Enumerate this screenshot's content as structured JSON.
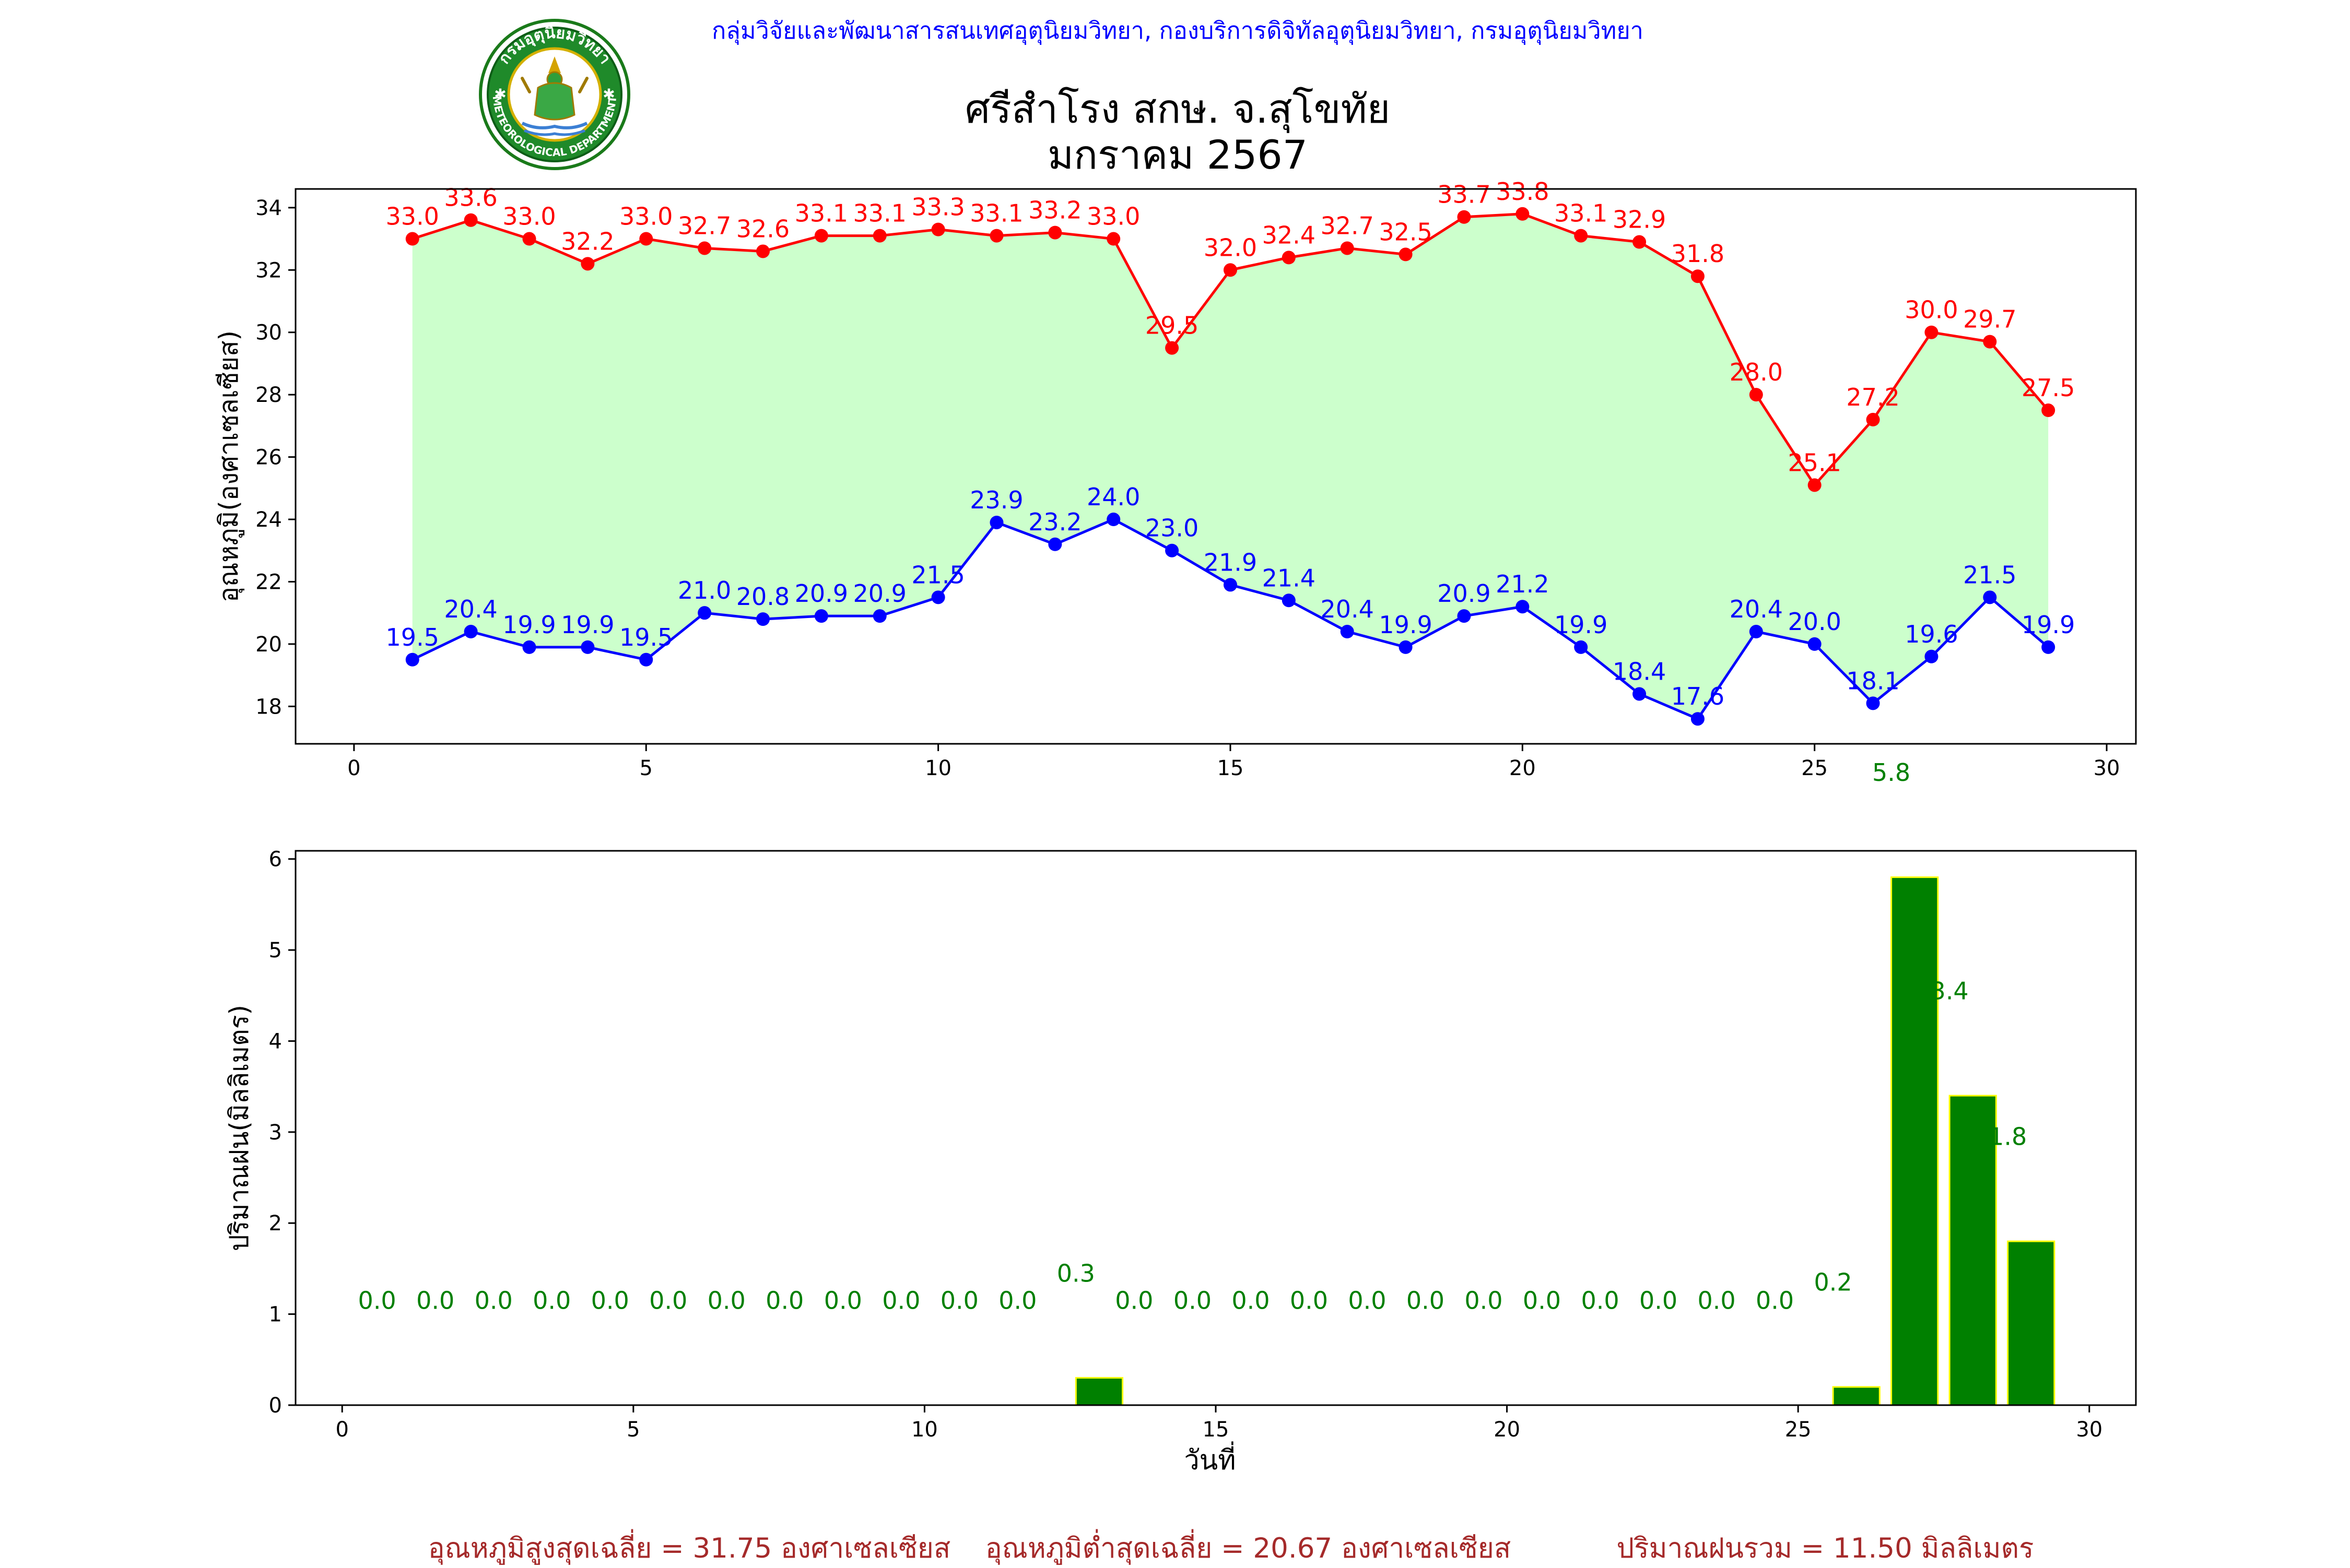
{
  "header": {
    "department_line": "กลุ่มวิจัยและพัฒนาสารสนเทศอุตุนิยมวิทยา, กองบริการดิจิทัลอุตุนิยมวิทยา, กรมอุตุนิยมวิทยา",
    "station": "ศรีสำโรง สกษ. จ.สุโขทัย",
    "month": "มกราคม 2567",
    "logo_text_top": "กรมอุตุนิยมวิทยา",
    "logo_text_bottom": "METEOROLOGICAL DEPARTMENT"
  },
  "colors": {
    "max_line": "#ff0000",
    "min_line": "#0000ff",
    "band_fill": "#ccffcc",
    "rain_bar": "#008000",
    "rain_edge": "#ffff00",
    "rain_label": "#008000",
    "summary_text": "#a52a2a",
    "header_text": "#0000ff"
  },
  "chart_data": [
    {
      "type": "line",
      "ylabel": "อุณหภูมิ(องศาเซลเซียส)",
      "xlim": [
        -1,
        30.5
      ],
      "ylim": [
        16.8,
        34.6
      ],
      "xticks": [
        0,
        5,
        10,
        15,
        20,
        25,
        30
      ],
      "yticks": [
        18,
        20,
        22,
        24,
        26,
        28,
        30,
        32,
        34
      ],
      "x": [
        1,
        2,
        3,
        4,
        5,
        6,
        7,
        8,
        9,
        10,
        11,
        12,
        13,
        14,
        15,
        16,
        17,
        18,
        19,
        20,
        21,
        22,
        23,
        24,
        25,
        26,
        27,
        28,
        29
      ],
      "series": [
        {
          "key": "max",
          "values": [
            33.0,
            33.6,
            33.0,
            32.2,
            33.0,
            32.7,
            32.6,
            33.1,
            33.1,
            33.3,
            33.1,
            33.2,
            33.0,
            29.5,
            32.0,
            32.4,
            32.7,
            32.5,
            33.7,
            33.8,
            33.1,
            32.9,
            31.8,
            28.0,
            25.1,
            27.2,
            30.0,
            29.7,
            27.5
          ]
        },
        {
          "key": "min",
          "values": [
            19.5,
            20.4,
            19.9,
            19.9,
            19.5,
            21.0,
            20.8,
            20.9,
            20.9,
            21.5,
            23.9,
            23.2,
            24.0,
            23.0,
            21.9,
            21.4,
            20.4,
            19.9,
            20.9,
            21.2,
            19.9,
            18.4,
            17.6,
            20.4,
            20.0,
            18.1,
            19.6,
            21.5,
            19.9
          ]
        }
      ]
    },
    {
      "type": "bar",
      "ylabel": "ปริมาณฝน(มิลลิเมตร)",
      "xlabel": "วันที่",
      "xlim": [
        -0.8,
        30.8
      ],
      "ylim": [
        0,
        6.09
      ],
      "xticks": [
        0,
        5,
        10,
        15,
        20,
        25,
        30
      ],
      "yticks": [
        0,
        1,
        2,
        3,
        4,
        5,
        6
      ],
      "x": [
        1,
        2,
        3,
        4,
        5,
        6,
        7,
        8,
        9,
        10,
        11,
        12,
        13,
        14,
        15,
        16,
        17,
        18,
        19,
        20,
        21,
        22,
        23,
        24,
        25,
        26,
        27,
        28,
        29
      ],
      "values": [
        0.0,
        0.0,
        0.0,
        0.0,
        0.0,
        0.0,
        0.0,
        0.0,
        0.0,
        0.0,
        0.0,
        0.0,
        0.3,
        0.0,
        0.0,
        0.0,
        0.0,
        0.0,
        0.0,
        0.0,
        0.0,
        0.0,
        0.0,
        0.0,
        0.0,
        0.2,
        5.8,
        3.4,
        1.8
      ]
    }
  ],
  "summary": {
    "avg_max": "อุณหภูมิสูงสุดเฉลี่ย = 31.75 องศาเซลเซียส",
    "avg_min": "อุณหภูมิต่ำสุดเฉลี่ย = 20.67 องศาเซลเซียส",
    "total_rain": "ปริมาณฝนรวม = 11.50 มิลลิเมตร"
  }
}
